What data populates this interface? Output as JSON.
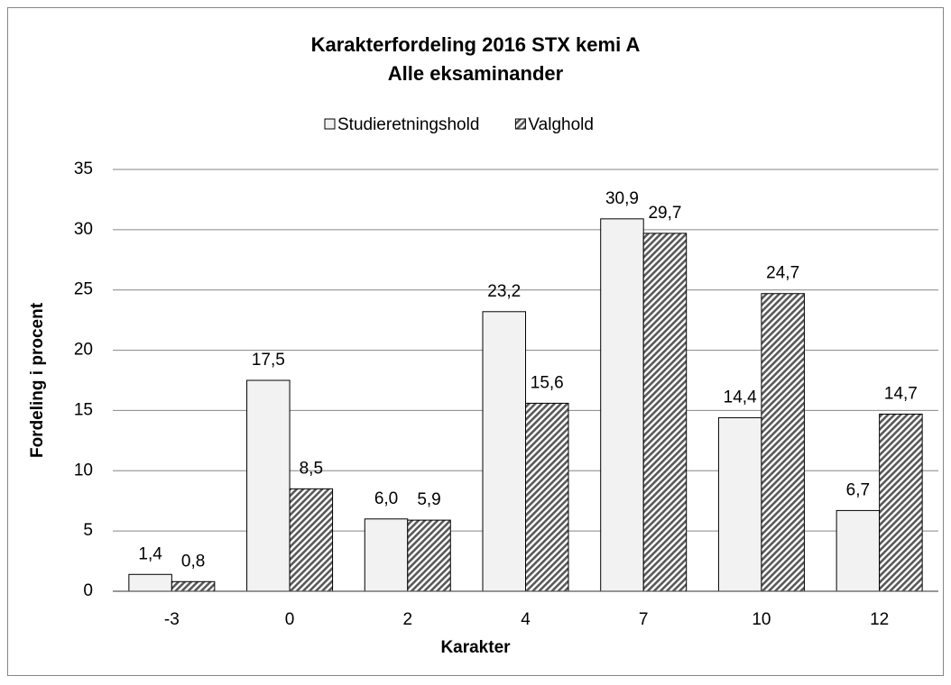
{
  "chart_data": {
    "type": "bar",
    "title": [
      "Karakterfordeling 2016 STX kemi A",
      "Alle eksaminander"
    ],
    "x_label": "Karakter",
    "y_label": "Fordeling i procent",
    "categories": [
      "-3",
      "0",
      "2",
      "4",
      "7",
      "10",
      "12"
    ],
    "series": [
      {
        "name": "Studieretningshold",
        "color": "#f2f2f2",
        "pattern": "solid",
        "values": [
          1.4,
          17.5,
          6.0,
          23.2,
          30.9,
          14.4,
          6.7
        ],
        "value_labels": [
          "1,4",
          "17,5",
          "6,0",
          "23,2",
          "30,9",
          "14,4",
          "6,7"
        ]
      },
      {
        "name": "Valghold",
        "color": "#595959",
        "pattern": "hatch",
        "values": [
          0.8,
          8.5,
          5.9,
          15.6,
          29.7,
          24.7,
          14.7
        ],
        "value_labels": [
          "0,8",
          "8,5",
          "5,9",
          "15,6",
          "29,7",
          "24,7",
          "14,7"
        ]
      }
    ],
    "ylim": [
      0,
      35
    ],
    "yticks": [
      0,
      5,
      10,
      15,
      20,
      25,
      30,
      35
    ],
    "grid": true,
    "legend": "top"
  }
}
